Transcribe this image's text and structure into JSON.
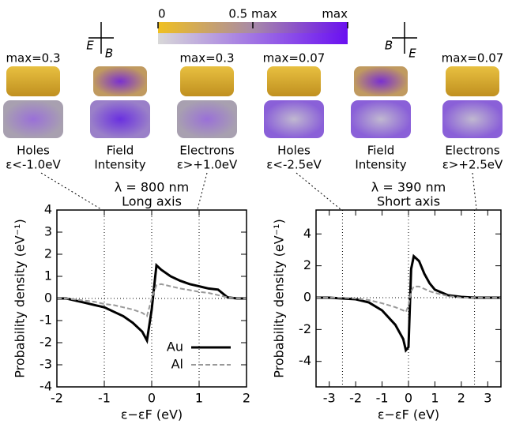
{
  "header": {
    "colorbar_labels": [
      "0",
      "0.5 max",
      "max"
    ],
    "cross_labels": [
      [
        "E",
        "B"
      ],
      [
        "B",
        "E"
      ]
    ],
    "panels": [
      {
        "max": "max=0.3",
        "caption": [
          "Holes",
          "ε<-1.0eV"
        ]
      },
      {
        "caption": [
          "Field",
          "Intensity"
        ]
      },
      {
        "max": "max=0.3",
        "caption": [
          "Electrons",
          "ε>+1.0eV"
        ]
      },
      {
        "max": "max=0.07",
        "caption": [
          "Holes",
          "ε<-2.5eV"
        ]
      },
      {
        "caption": [
          "Field",
          "Intensity"
        ]
      },
      {
        "max": "max=0.07",
        "caption": [
          "Electrons",
          "ε>+2.5eV"
        ]
      }
    ]
  },
  "chart_data": [
    {
      "type": "line",
      "title": "λ = 800 nm",
      "subtitle": "Long axis",
      "xlabel": "ε−εF (eV)",
      "ylabel": "Probability density (eV⁻¹)",
      "x": [
        -2,
        -1.8,
        -1.6,
        -1.4,
        -1.2,
        -1,
        -0.8,
        -0.6,
        -0.4,
        -0.2,
        -0.1,
        0,
        0.1,
        0.2,
        0.4,
        0.6,
        0.8,
        1,
        1.2,
        1.4,
        1.6,
        1.8,
        2
      ],
      "series": [
        {
          "name": "Au",
          "color": "#000000",
          "values": [
            0,
            0,
            -0.1,
            -0.2,
            -0.3,
            -0.4,
            -0.6,
            -0.8,
            -1.1,
            -1.5,
            -1.9,
            -0.5,
            1.5,
            1.3,
            1.0,
            0.8,
            0.65,
            0.55,
            0.45,
            0.4,
            0.05,
            0,
            0
          ]
        },
        {
          "name": "Al",
          "color": "#999999",
          "values": [
            0,
            0,
            -0.05,
            -0.1,
            -0.15,
            -0.25,
            -0.3,
            -0.4,
            -0.5,
            -0.65,
            -0.8,
            0,
            0.6,
            0.65,
            0.55,
            0.45,
            0.38,
            0.3,
            0.25,
            0.15,
            0.05,
            0,
            0
          ]
        }
      ],
      "xlim": [
        -2,
        2
      ],
      "ylim": [
        -4,
        4
      ],
      "xticks": [
        -2,
        -1,
        0,
        1,
        2
      ],
      "yticks": [
        -4,
        -3,
        -2,
        -1,
        0,
        1,
        2,
        3,
        4
      ],
      "vlines": [
        -1,
        0,
        1
      ],
      "legend": "lower right"
    },
    {
      "type": "line",
      "title": "λ = 390 nm",
      "subtitle": "Short axis",
      "xlabel": "ε−εF (eV)",
      "ylabel": "Probability density (eV⁻¹)",
      "x": [
        -3.5,
        -3,
        -2.5,
        -2,
        -1.5,
        -1,
        -0.5,
        -0.2,
        -0.1,
        0,
        0.1,
        0.2,
        0.4,
        0.6,
        0.8,
        1,
        1.5,
        2,
        2.5,
        3,
        3.5
      ],
      "series": [
        {
          "name": "Au",
          "color": "#000000",
          "values": [
            0,
            0,
            -0.05,
            -0.1,
            -0.3,
            -0.8,
            -1.7,
            -2.6,
            -3.3,
            -3.1,
            1.8,
            2.6,
            2.3,
            1.5,
            0.9,
            0.5,
            0.15,
            0.05,
            0,
            0,
            0
          ]
        },
        {
          "name": "Al",
          "color": "#999999",
          "values": [
            0,
            0,
            0,
            -0.05,
            -0.15,
            -0.35,
            -0.6,
            -0.8,
            -0.9,
            -0.5,
            0.4,
            0.7,
            0.7,
            0.55,
            0.4,
            0.3,
            0.1,
            0,
            0,
            0,
            0
          ]
        }
      ],
      "xlim": [
        -3.5,
        3.5
      ],
      "ylim": [
        -5.6,
        5.5
      ],
      "xticks": [
        -3,
        -2,
        -1,
        0,
        1,
        2,
        3
      ],
      "yticks": [
        -4,
        -2,
        0,
        2,
        4
      ],
      "vlines": [
        -2.5,
        0,
        2.5
      ]
    }
  ]
}
